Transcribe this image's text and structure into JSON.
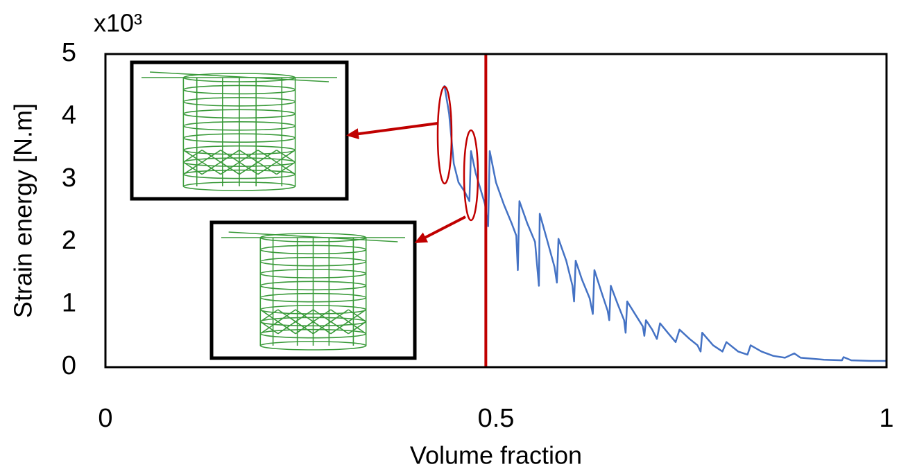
{
  "chart_data": {
    "type": "line",
    "y_multiplier": "x10³",
    "x_label": "Volume fraction",
    "y_label": "Strain energy [N.m]",
    "xlim": [
      0,
      1
    ],
    "ylim": [
      0,
      5
    ],
    "xticks": [
      0,
      0.5,
      1
    ],
    "yticks": [
      0,
      1,
      2,
      3,
      4,
      5
    ],
    "color": "#4472c4",
    "vline": {
      "x": 0.487,
      "color": "#c00000"
    },
    "x": [
      0.434,
      0.44,
      0.446,
      0.452,
      0.46,
      0.466,
      0.468,
      0.474,
      0.48,
      0.486,
      0.49,
      0.492,
      0.5,
      0.51,
      0.52,
      0.526,
      0.528,
      0.53,
      0.54,
      0.55,
      0.555,
      0.556,
      0.565,
      0.575,
      0.578,
      0.58,
      0.59,
      0.598,
      0.6,
      0.602,
      0.61,
      0.62,
      0.624,
      0.626,
      0.635,
      0.643,
      0.645,
      0.647,
      0.656,
      0.664,
      0.666,
      0.668,
      0.678,
      0.688,
      0.69,
      0.692,
      0.7,
      0.706,
      0.71,
      0.72,
      0.73,
      0.735,
      0.748,
      0.758,
      0.762,
      0.764,
      0.778,
      0.79,
      0.795,
      0.81,
      0.822,
      0.826,
      0.84,
      0.855,
      0.87,
      0.882,
      0.89,
      0.92,
      0.943,
      0.945,
      0.955,
      0.98,
      1.0
    ],
    "values": [
      4.5,
      4.05,
      3.25,
      2.95,
      2.8,
      2.65,
      3.45,
      3.1,
      2.85,
      2.6,
      2.25,
      3.45,
      2.95,
      2.6,
      2.3,
      2.1,
      1.55,
      2.65,
      2.3,
      2.0,
      1.3,
      2.45,
      2.05,
      1.6,
      1.35,
      2.05,
      1.7,
      1.3,
      1.05,
      1.7,
      1.4,
      1.1,
      0.85,
      1.55,
      1.2,
      0.9,
      0.75,
      1.3,
      1.0,
      0.75,
      0.55,
      1.05,
      0.85,
      0.65,
      0.5,
      0.75,
      0.6,
      0.45,
      0.7,
      0.55,
      0.4,
      0.6,
      0.45,
      0.35,
      0.25,
      0.55,
      0.35,
      0.25,
      0.4,
      0.25,
      0.2,
      0.35,
      0.25,
      0.18,
      0.15,
      0.22,
      0.15,
      0.12,
      0.11,
      0.16,
      0.11,
      0.1,
      0.1
    ]
  }
}
